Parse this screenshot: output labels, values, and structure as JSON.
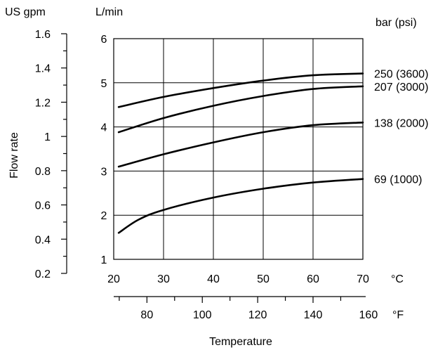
{
  "chart_data": {
    "type": "line",
    "title": "",
    "xlabel": "Temperature",
    "ylabel": "Flow rate",
    "x_unit_primary": "°C",
    "x_unit_secondary": "°F",
    "y_unit_primary": "L/min",
    "y_unit_secondary": "US gpm",
    "series_unit": "bar (psi)",
    "xlim": [
      20,
      70
    ],
    "ylim": [
      1,
      6
    ],
    "grid": true,
    "x_ticks": [
      "20",
      "30",
      "40",
      "50",
      "60",
      "70"
    ],
    "y_ticks": [
      "1",
      "2",
      "3",
      "4",
      "5",
      "6"
    ],
    "x2_ticks": [
      "80",
      "100",
      "120",
      "140",
      "160"
    ],
    "y2_ticks": [
      "0.2",
      "0.4",
      "0.6",
      "0.8",
      "1",
      "1.2",
      "1.4",
      "1.6"
    ],
    "series": [
      {
        "name": "250 (3600)",
        "x": [
          21,
          30,
          40,
          50,
          60,
          70
        ],
        "y": [
          4.45,
          4.68,
          4.88,
          5.05,
          5.17,
          5.21
        ]
      },
      {
        "name": "207 (3000)",
        "x": [
          21,
          30,
          40,
          50,
          60,
          70
        ],
        "y": [
          3.88,
          4.2,
          4.48,
          4.7,
          4.86,
          4.92
        ]
      },
      {
        "name": "138 (2000)",
        "x": [
          21,
          30,
          40,
          50,
          60,
          70
        ],
        "y": [
          3.1,
          3.38,
          3.65,
          3.88,
          4.04,
          4.1
        ]
      },
      {
        "name": "69 (1000)",
        "x": [
          21,
          25,
          30,
          40,
          50,
          60,
          70
        ],
        "y": [
          1.6,
          1.9,
          2.12,
          2.4,
          2.6,
          2.74,
          2.82
        ]
      }
    ]
  }
}
